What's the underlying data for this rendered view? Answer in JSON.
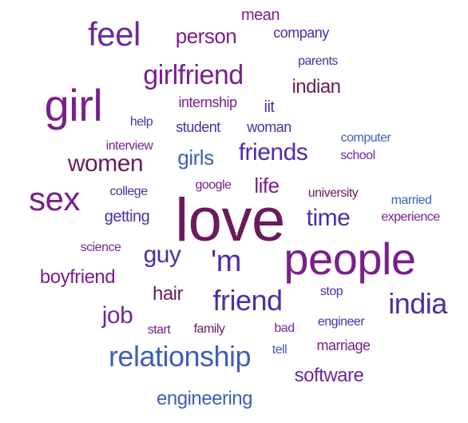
{
  "colors": {
    "purple": "#7a1f8c",
    "violet": "#6b2aa0",
    "indigo": "#4a2fa6",
    "blue": "#3f5fb5",
    "maroon": "#6a1b5a",
    "plum": "#8a1f80"
  },
  "words": [
    {
      "text": "love",
      "weight": 100,
      "color": "#6a1b5a"
    },
    {
      "text": "people",
      "weight": 80,
      "color": "#7a1f8c"
    },
    {
      "text": "girl",
      "weight": 78,
      "color": "#7a1f8c"
    },
    {
      "text": "sex",
      "weight": 60,
      "color": "#7a1f8c"
    },
    {
      "text": "feel",
      "weight": 60,
      "color": "#6b2aa0"
    },
    {
      "text": "'m",
      "weight": 55,
      "color": "#4a2fa6"
    },
    {
      "text": "india",
      "weight": 48,
      "color": "#4a2fa6"
    },
    {
      "text": "friend",
      "weight": 48,
      "color": "#4a2fa6"
    },
    {
      "text": "relationship",
      "weight": 45,
      "color": "#3f5fb5"
    },
    {
      "text": "girlfriend",
      "weight": 44,
      "color": "#7a1f8c"
    },
    {
      "text": "friends",
      "weight": 40,
      "color": "#4a2fa6"
    },
    {
      "text": "women",
      "weight": 38,
      "color": "#6a1b5a"
    },
    {
      "text": "guy",
      "weight": 40,
      "color": "#4a2fa6"
    },
    {
      "text": "time",
      "weight": 38,
      "color": "#4a2fa6"
    },
    {
      "text": "job",
      "weight": 38,
      "color": "#6b2aa0"
    },
    {
      "text": "person",
      "weight": 34,
      "color": "#7a1f8c"
    },
    {
      "text": "life",
      "weight": 34,
      "color": "#7a1f8c"
    },
    {
      "text": "girls",
      "weight": 33,
      "color": "#3f5fb5"
    },
    {
      "text": "indian",
      "weight": 32,
      "color": "#6a1b5a"
    },
    {
      "text": "hair",
      "weight": 32,
      "color": "#6a1b5a"
    },
    {
      "text": "boyfriend",
      "weight": 30,
      "color": "#7a1f8c"
    },
    {
      "text": "software",
      "weight": 30,
      "color": "#6b2aa0"
    },
    {
      "text": "engineering",
      "weight": 28,
      "color": "#3f5fb5"
    },
    {
      "text": "getting",
      "weight": 26,
      "color": "#4a2fa6"
    },
    {
      "text": "iit",
      "weight": 26,
      "color": "#4a2fa6"
    },
    {
      "text": "mean",
      "weight": 22,
      "color": "#7a1f8c"
    },
    {
      "text": "internship",
      "weight": 22,
      "color": "#7a1f8c"
    },
    {
      "text": "marriage",
      "weight": 22,
      "color": "#7a1f8c"
    },
    {
      "text": "company",
      "weight": 20,
      "color": "#4a2fa6"
    },
    {
      "text": "student",
      "weight": 20,
      "color": "#4a2fa6"
    },
    {
      "text": "woman",
      "weight": 20,
      "color": "#4a2fa6"
    },
    {
      "text": "interview",
      "weight": 18,
      "color": "#7a1f8c"
    },
    {
      "text": "help",
      "weight": 18,
      "color": "#4a2fa6"
    },
    {
      "text": "parents",
      "weight": 18,
      "color": "#4a2fa6"
    },
    {
      "text": "school",
      "weight": 18,
      "color": "#6b2aa0"
    },
    {
      "text": "college",
      "weight": 18,
      "color": "#4a2fa6"
    },
    {
      "text": "google",
      "weight": 18,
      "color": "#7a1f8c"
    },
    {
      "text": "university",
      "weight": 18,
      "color": "#6a1b5a"
    },
    {
      "text": "married",
      "weight": 18,
      "color": "#3f5fb5"
    },
    {
      "text": "experience",
      "weight": 18,
      "color": "#7a1f8c"
    },
    {
      "text": "computer",
      "weight": 17,
      "color": "#3f5fb5"
    },
    {
      "text": "science",
      "weight": 17,
      "color": "#6b2aa0"
    },
    {
      "text": "stop",
      "weight": 17,
      "color": "#4a2fa6"
    },
    {
      "text": "start",
      "weight": 17,
      "color": "#7a1f8c"
    },
    {
      "text": "family",
      "weight": 17,
      "color": "#6a1b5a"
    },
    {
      "text": "bad",
      "weight": 17,
      "color": "#6b2aa0"
    },
    {
      "text": "engineer",
      "weight": 17,
      "color": "#4a2fa6"
    },
    {
      "text": "tell",
      "weight": 17,
      "color": "#3f5fb5"
    }
  ]
}
